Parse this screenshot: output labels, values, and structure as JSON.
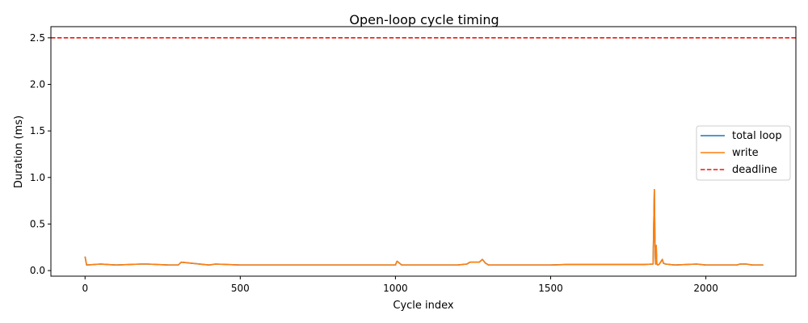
{
  "chart_data": {
    "type": "line",
    "title": "Open-loop cycle timing",
    "xlabel": "Cycle index",
    "ylabel": "Duration (ms)",
    "xlim": [
      -110,
      2290
    ],
    "ylim": [
      -0.06,
      2.62
    ],
    "xticks": [
      0,
      500,
      1000,
      1500,
      2000
    ],
    "xtick_labels": [
      "0",
      "500",
      "1000",
      "1500",
      "2000"
    ],
    "yticks": [
      0.0,
      0.5,
      1.0,
      1.5,
      2.0,
      2.5
    ],
    "ytick_labels": [
      "0.0",
      "0.5",
      "1.0",
      "1.5",
      "2.0",
      "2.5"
    ],
    "grid": false,
    "legend_position": "center-right",
    "series": [
      {
        "name": "total loop",
        "color": "#1f77b4",
        "style": "solid",
        "x": [
          0,
          5,
          50,
          100,
          180,
          200,
          270,
          300,
          310,
          400,
          420,
          500,
          700,
          1000,
          1005,
          1020,
          1100,
          1200,
          1230,
          1240,
          1270,
          1280,
          1290,
          1300,
          1400,
          1460,
          1500,
          1550,
          1620,
          1700,
          1800,
          1830,
          1834,
          1836,
          1838,
          1840,
          1842,
          1845,
          1850,
          1860,
          1863,
          1870,
          1900,
          1970,
          2000,
          2100,
          2110,
          2130,
          2150,
          2185
        ],
        "y": [
          0.15,
          0.06,
          0.07,
          0.06,
          0.07,
          0.07,
          0.06,
          0.06,
          0.09,
          0.06,
          0.07,
          0.06,
          0.06,
          0.06,
          0.1,
          0.06,
          0.06,
          0.06,
          0.07,
          0.09,
          0.09,
          0.12,
          0.08,
          0.06,
          0.06,
          0.06,
          0.06,
          0.065,
          0.065,
          0.065,
          0.065,
          0.07,
          0.87,
          0.3,
          0.07,
          0.27,
          0.07,
          0.06,
          0.07,
          0.12,
          0.08,
          0.07,
          0.06,
          0.07,
          0.06,
          0.06,
          0.07,
          0.07,
          0.06,
          0.06
        ]
      },
      {
        "name": "write",
        "color": "#ff7f0e",
        "style": "solid",
        "x": [
          0,
          5,
          50,
          100,
          180,
          200,
          270,
          300,
          310,
          400,
          420,
          500,
          700,
          1000,
          1005,
          1020,
          1100,
          1200,
          1230,
          1240,
          1270,
          1280,
          1290,
          1300,
          1400,
          1460,
          1500,
          1550,
          1620,
          1700,
          1800,
          1830,
          1834,
          1836,
          1838,
          1840,
          1842,
          1845,
          1850,
          1860,
          1863,
          1870,
          1900,
          1970,
          2000,
          2100,
          2110,
          2130,
          2150,
          2185
        ],
        "y": [
          0.15,
          0.06,
          0.07,
          0.06,
          0.07,
          0.07,
          0.06,
          0.06,
          0.09,
          0.06,
          0.07,
          0.06,
          0.06,
          0.06,
          0.1,
          0.06,
          0.06,
          0.06,
          0.07,
          0.09,
          0.09,
          0.12,
          0.08,
          0.06,
          0.06,
          0.06,
          0.06,
          0.065,
          0.065,
          0.065,
          0.065,
          0.07,
          0.87,
          0.3,
          0.07,
          0.27,
          0.07,
          0.06,
          0.07,
          0.12,
          0.08,
          0.07,
          0.06,
          0.07,
          0.06,
          0.06,
          0.07,
          0.07,
          0.06,
          0.06
        ]
      },
      {
        "name": "deadline",
        "color": "#e8190f",
        "style": "dashed",
        "y_constant": 2.5
      }
    ]
  }
}
